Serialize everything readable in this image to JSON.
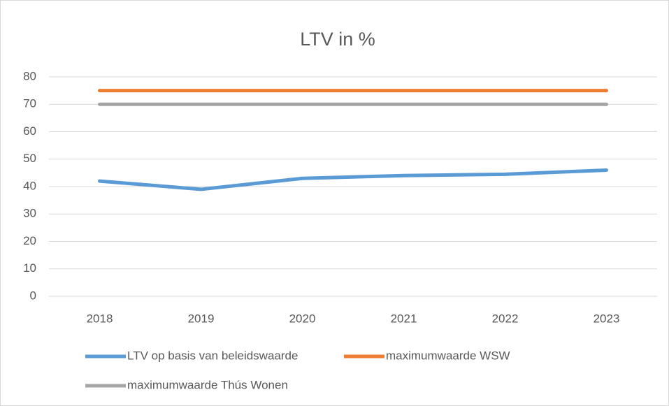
{
  "chart_data": {
    "type": "line",
    "title": "LTV in %",
    "categories": [
      "2018",
      "2019",
      "2020",
      "2021",
      "2022",
      "2023"
    ],
    "series": [
      {
        "name": "LTV op basis van beleidswaarde",
        "color": "#5b9bd5",
        "values": [
          42,
          39,
          43,
          44,
          44.5,
          46
        ]
      },
      {
        "name": "maximumwaarde WSW",
        "color": "#ed7d31",
        "values": [
          75,
          75,
          75,
          75,
          75,
          75
        ]
      },
      {
        "name": "maximumwaarde Thús Wonen",
        "color": "#a5a5a5",
        "values": [
          70,
          70,
          70,
          70,
          70,
          70
        ]
      }
    ],
    "ylim": [
      0,
      80
    ],
    "yticks": [
      0,
      10,
      20,
      30,
      40,
      50,
      60,
      70,
      80
    ],
    "grid": true,
    "legend": "bottom"
  }
}
